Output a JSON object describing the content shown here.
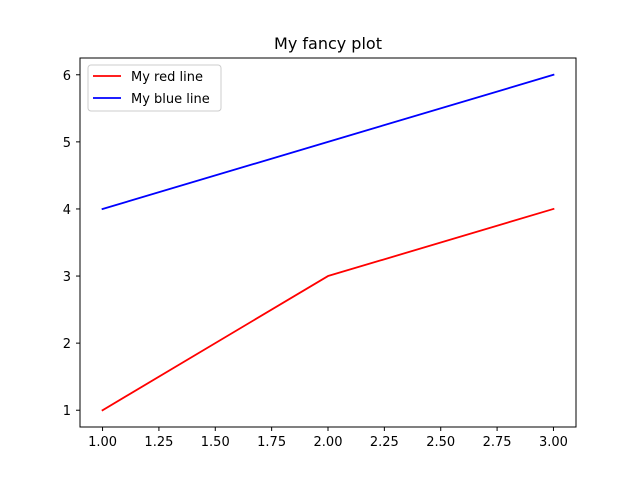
{
  "chart_data": {
    "type": "line",
    "title": "My fancy plot",
    "xlabel": "",
    "ylabel": "",
    "xlim": [
      0.9,
      3.1
    ],
    "ylim": [
      0.75,
      6.25
    ],
    "xticks": [
      1.0,
      1.25,
      1.5,
      1.75,
      2.0,
      2.25,
      2.5,
      2.75,
      3.0
    ],
    "xtick_labels": [
      "1.00",
      "1.25",
      "1.50",
      "1.75",
      "2.00",
      "2.25",
      "2.50",
      "2.75",
      "3.00"
    ],
    "yticks": [
      1,
      2,
      3,
      4,
      5,
      6
    ],
    "ytick_labels": [
      "1",
      "2",
      "3",
      "4",
      "5",
      "6"
    ],
    "grid": false,
    "legend_position": "upper-left",
    "series": [
      {
        "name": "My red line",
        "color": "#ff0000",
        "x": [
          1,
          2,
          3
        ],
        "y": [
          1,
          3,
          4
        ]
      },
      {
        "name": "My blue line",
        "color": "#0000ff",
        "x": [
          1,
          2,
          3
        ],
        "y": [
          4,
          5,
          6
        ]
      }
    ]
  }
}
